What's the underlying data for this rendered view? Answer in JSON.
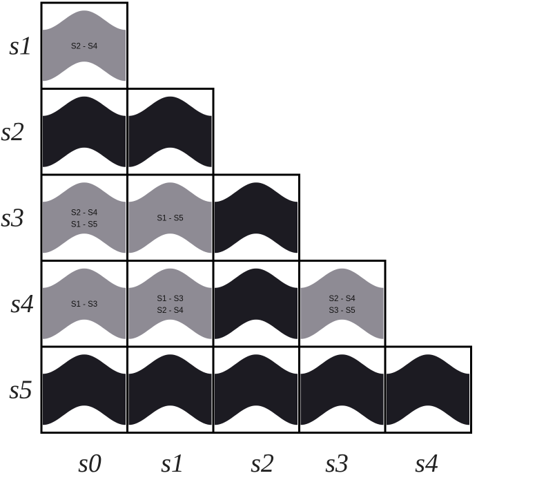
{
  "row_labels": [
    "s1",
    "s2",
    "s3",
    "s4",
    "s5"
  ],
  "col_labels": [
    "s0",
    "s1",
    "s2",
    "s3",
    "s4"
  ],
  "colors": {
    "dark": "#1c1b22",
    "light": "#8e8b94",
    "grid": "#000000"
  },
  "cells": [
    {
      "row": 0,
      "col": 0,
      "shade": "light",
      "labels": [
        "S2 - S4"
      ]
    },
    {
      "row": 1,
      "col": 0,
      "shade": "dark",
      "labels": []
    },
    {
      "row": 1,
      "col": 1,
      "shade": "dark",
      "labels": []
    },
    {
      "row": 2,
      "col": 0,
      "shade": "light",
      "labels": [
        "S2 - S4",
        "S1 - S5"
      ]
    },
    {
      "row": 2,
      "col": 1,
      "shade": "light",
      "labels": [
        "S1 - S5"
      ]
    },
    {
      "row": 2,
      "col": 2,
      "shade": "dark",
      "labels": []
    },
    {
      "row": 3,
      "col": 0,
      "shade": "light",
      "labels": [
        "S1 - S3"
      ]
    },
    {
      "row": 3,
      "col": 1,
      "shade": "light",
      "labels": [
        "S1 - S3",
        "S2 - S4"
      ]
    },
    {
      "row": 3,
      "col": 2,
      "shade": "dark",
      "labels": []
    },
    {
      "row": 3,
      "col": 3,
      "shade": "light",
      "labels": [
        "S2 - S4",
        "S3 - S5"
      ]
    },
    {
      "row": 4,
      "col": 0,
      "shade": "dark",
      "labels": []
    },
    {
      "row": 4,
      "col": 1,
      "shade": "dark",
      "labels": []
    },
    {
      "row": 4,
      "col": 2,
      "shade": "dark",
      "labels": []
    },
    {
      "row": 4,
      "col": 3,
      "shade": "dark",
      "labels": []
    },
    {
      "row": 4,
      "col": 4,
      "shade": "dark",
      "labels": []
    }
  ]
}
